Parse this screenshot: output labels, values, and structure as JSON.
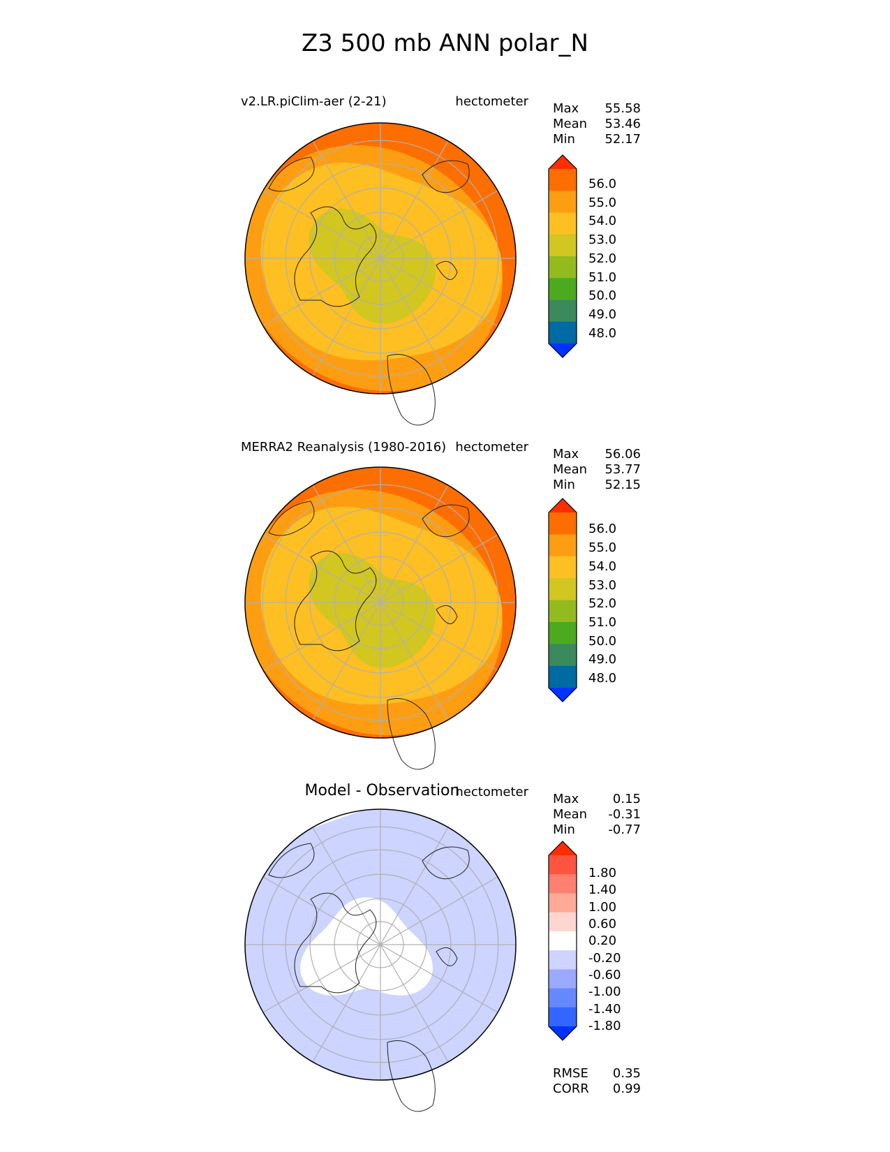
{
  "figure": {
    "title": "Z3 500 mb ANN polar_N",
    "colors": {
      "ramp": [
        "#0033ff",
        "#006aa3",
        "#3a8a5e",
        "#4caa1e",
        "#93bb1d",
        "#d2c620",
        "#fdbf22",
        "#fd9e12",
        "#fd6e00",
        "#ff2e00"
      ],
      "diff": [
        "#0033ff",
        "#3366ff",
        "#6688ff",
        "#99aaff",
        "#ccd4ff",
        "#ffffff",
        "#ffd5d0",
        "#ffaa99",
        "#ff8070",
        "#ff5540",
        "#ff2e00"
      ],
      "gridline": "#b0b0b0"
    },
    "panels": [
      {
        "id": "test",
        "left_label": "v2.LR.piClim-aer (2-21)",
        "units": "hectometer",
        "stats": {
          "max_label": "Max",
          "max": "55.58",
          "mean_label": "Mean",
          "mean": "53.46",
          "min_label": "Min",
          "min": "52.17"
        },
        "colorbar_ticks": [
          "56.0",
          "55.0",
          "54.0",
          "53.0",
          "52.0",
          "51.0",
          "50.0",
          "49.0",
          "48.0"
        ]
      },
      {
        "id": "ref",
        "left_label": "MERRA2 Reanalysis (1980-2016)",
        "units": "hectometer",
        "stats": {
          "max_label": "Max",
          "max": "56.06",
          "mean_label": "Mean",
          "mean": "53.77",
          "min_label": "Min",
          "min": "52.15"
        },
        "colorbar_ticks": [
          "56.0",
          "55.0",
          "54.0",
          "53.0",
          "52.0",
          "51.0",
          "50.0",
          "49.0",
          "48.0"
        ]
      },
      {
        "id": "diff",
        "title": "Model - Observation",
        "units": "hectometer",
        "stats": {
          "max_label": "Max",
          "max": "0.15",
          "mean_label": "Mean",
          "mean": "-0.31",
          "min_label": "Min",
          "min": "-0.77"
        },
        "colorbar_ticks": [
          "1.80",
          "1.40",
          "1.00",
          "0.60",
          "0.20",
          "-0.20",
          "-0.60",
          "-1.00",
          "-1.40",
          "-1.80"
        ],
        "metrics": {
          "rmse_label": "RMSE",
          "rmse": "0.35",
          "corr_label": "CORR",
          "corr": "0.99"
        }
      }
    ]
  }
}
